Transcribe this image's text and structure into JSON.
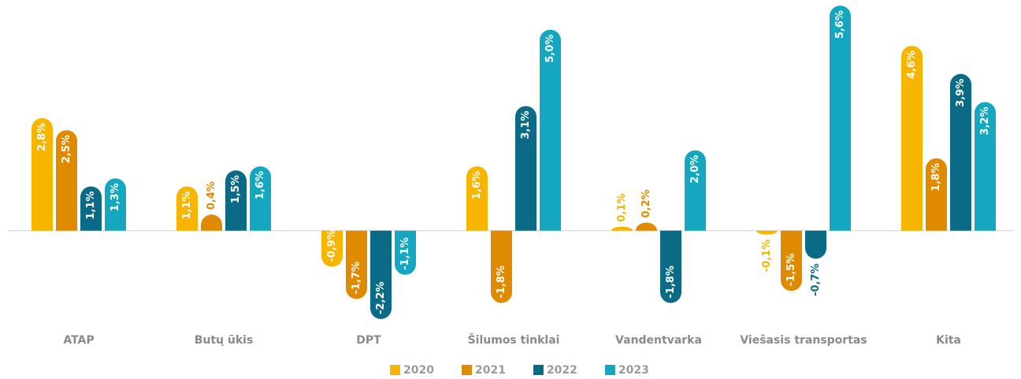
{
  "chart_data": {
    "type": "bar",
    "categories": [
      "ATAP",
      "Butų ūkis",
      "DPT",
      "Šilumos tinklai",
      "Vandentvarka",
      "Viešasis transportas",
      "Kita"
    ],
    "series": [
      {
        "name": "2020",
        "color": "#f7b500",
        "values": [
          2.8,
          1.1,
          -0.9,
          1.6,
          0.1,
          -0.1,
          4.6
        ],
        "value_labels": [
          "2,8%",
          "1,1%",
          "-0,9%",
          "1,6%",
          "0,1%",
          "-0,1%",
          "4,6%"
        ]
      },
      {
        "name": "2021",
        "color": "#e08a00",
        "values": [
          2.5,
          0.4,
          -1.7,
          -1.8,
          0.2,
          -1.5,
          1.8
        ],
        "value_labels": [
          "2,5%",
          "0,4%",
          "-1,7%",
          "-1,8%",
          "0,2%",
          "-1,5%",
          "1,8%"
        ]
      },
      {
        "name": "2022",
        "color": "#0b6b87",
        "values": [
          1.1,
          1.5,
          -2.2,
          3.1,
          -1.8,
          -0.7,
          3.9
        ],
        "value_labels": [
          "1,1%",
          "1,5%",
          "-2,2%",
          "3,1%",
          "-1,8%",
          "-0,7%",
          "3,9%"
        ]
      },
      {
        "name": "2023",
        "color": "#14a7bf",
        "values": [
          1.3,
          1.6,
          -1.1,
          5.0,
          2.0,
          5.6,
          3.2
        ],
        "value_labels": [
          "1,3%",
          "1,6%",
          "-1,1%",
          "5,0%",
          "2,0%",
          "5,6%",
          "3,2%"
        ]
      }
    ],
    "ylim": [
      -2.3,
      5.7
    ]
  }
}
